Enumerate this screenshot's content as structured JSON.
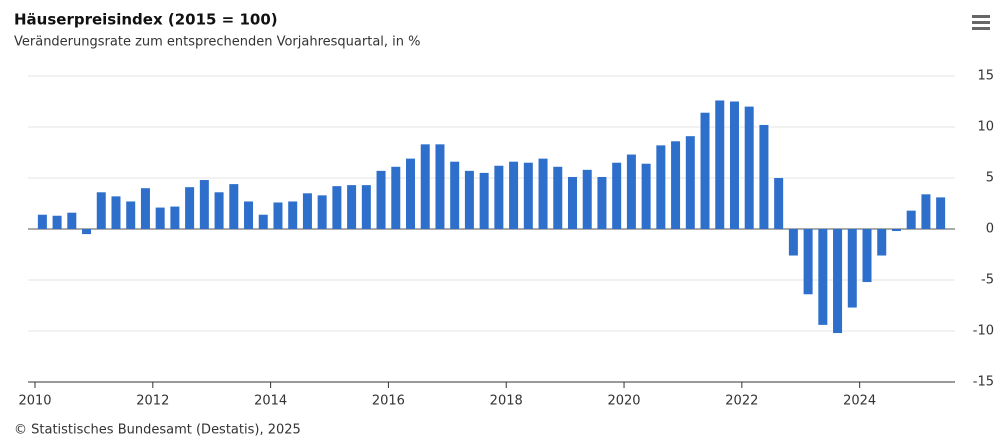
{
  "chart_data": {
    "type": "bar",
    "title": "Häuserpreisindex (2015 = 100)",
    "subtitle": "Veränderungsrate zum entsprechenden Vorjahresquartal, in %",
    "source": "© Statistisches Bundesamt (Destatis), 2025",
    "categories": [
      "2010",
      null,
      null,
      null,
      null,
      null,
      null,
      null,
      "2012",
      null,
      null,
      null,
      null,
      null,
      null,
      null,
      "2014",
      null,
      null,
      null,
      null,
      null,
      null,
      null,
      "2016",
      null,
      null,
      null,
      null,
      null,
      null,
      null,
      "2018",
      null,
      null,
      null,
      null,
      null,
      null,
      null,
      "2020",
      null,
      null,
      null,
      null,
      null,
      null,
      null,
      "2022",
      null,
      null,
      null,
      null,
      null,
      null,
      null,
      "2024",
      null,
      null,
      null,
      null,
      null
    ],
    "values": [
      1.4,
      1.3,
      1.6,
      -0.5,
      3.6,
      3.2,
      2.7,
      4.0,
      2.1,
      2.2,
      4.1,
      4.8,
      3.6,
      4.4,
      2.7,
      1.4,
      2.6,
      2.7,
      3.5,
      3.3,
      4.2,
      4.3,
      4.3,
      5.7,
      6.1,
      6.9,
      8.3,
      8.3,
      6.6,
      5.7,
      5.5,
      6.2,
      6.6,
      6.5,
      6.9,
      6.1,
      5.1,
      5.8,
      5.1,
      6.5,
      7.3,
      6.4,
      8.2,
      8.6,
      9.1,
      11.4,
      12.6,
      12.5,
      12.0,
      10.2,
      5.0,
      -2.6,
      -6.4,
      -9.4,
      -10.2,
      -7.7,
      -5.2,
      -2.6,
      -0.2,
      1.8,
      3.4,
      3.1
    ],
    "color": "#2e6fcb",
    "ylim": [
      -15,
      15
    ],
    "yticks": [
      -15,
      -10,
      -5,
      0,
      5,
      10,
      15
    ],
    "grid": true
  }
}
